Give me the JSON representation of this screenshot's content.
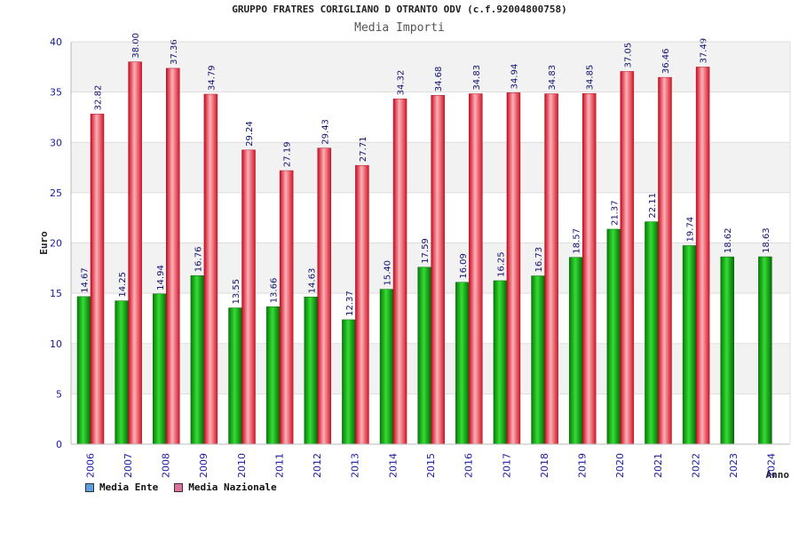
{
  "chart_data": {
    "type": "bar",
    "title": "GRUPPO FRATRES CORIGLIANO D OTRANTO ODV (c.f.92004800758)",
    "subtitle": "Media Importi",
    "xlabel": "Anno",
    "ylabel": "Euro",
    "ylim": [
      0,
      40
    ],
    "yticks": [
      0,
      5,
      10,
      15,
      20,
      25,
      30,
      35,
      40
    ],
    "grid": true,
    "legend_position": "bottom-left",
    "categories": [
      "2006",
      "2007",
      "2008",
      "2009",
      "2010",
      "2011",
      "2012",
      "2013",
      "2014",
      "2015",
      "2016",
      "2017",
      "2018",
      "2019",
      "2020",
      "2021",
      "2022",
      "2023",
      "2024"
    ],
    "series": [
      {
        "name": "Media Ente",
        "color": "#10b010",
        "legend_color": "#5aa0e0",
        "values": [
          14.67,
          14.25,
          14.94,
          16.76,
          13.55,
          13.66,
          14.63,
          12.37,
          15.4,
          17.59,
          16.09,
          16.25,
          16.73,
          18.57,
          21.37,
          22.11,
          19.74,
          18.62,
          18.63
        ],
        "labels": [
          "14.67",
          "14.25",
          "14.94",
          "16.76",
          "13.55",
          "13.66",
          "14.63",
          "12.37",
          "15.40",
          "17.59",
          "16.09",
          "16.25",
          "16.73",
          "18.57",
          "21.37",
          "22.11",
          "19.74",
          "18.62",
          "18.63"
        ]
      },
      {
        "name": "Media Nazionale",
        "color": "#e8283c",
        "legend_color": "#e070a0",
        "values": [
          32.82,
          38.0,
          37.36,
          34.79,
          29.24,
          27.19,
          29.43,
          27.71,
          34.32,
          34.68,
          34.83,
          34.94,
          34.83,
          34.85,
          37.05,
          36.46,
          37.49,
          null,
          null
        ],
        "labels": [
          "32.82",
          "38.00",
          "37.36",
          "34.79",
          "29.24",
          "27.19",
          "29.43",
          "27.71",
          "34.32",
          "34.68",
          "34.83",
          "34.94",
          "34.83",
          "34.85",
          "37.05",
          "36.46",
          "37.49",
          "",
          ""
        ]
      }
    ]
  }
}
